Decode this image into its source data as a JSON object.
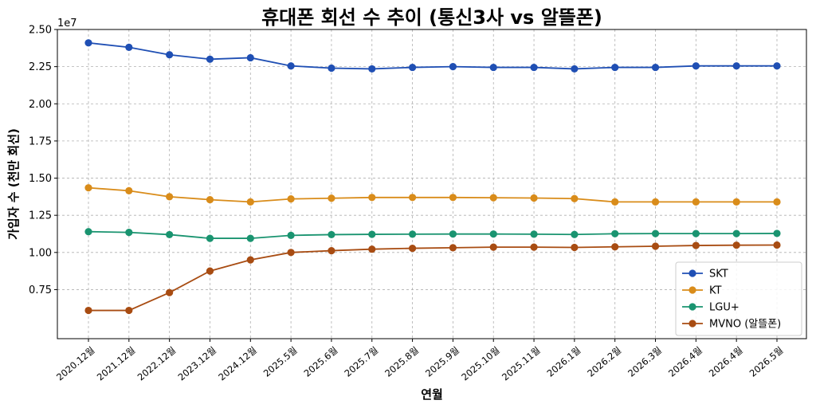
{
  "chart_data": {
    "type": "line",
    "title": "휴대폰 회선 수 추이 (통신3사 vs 알뜰폰)",
    "xlabel": "연월",
    "ylabel": "가입자 수 (천만 회선)",
    "y_offset_label": "1e7",
    "y_scale_exponent": 7,
    "ylim": [
      0.42,
      2.5
    ],
    "yticks": [
      0.75,
      1.0,
      1.25,
      1.5,
      1.75,
      2.0,
      2.25,
      2.5
    ],
    "ytick_labels": [
      "0.75",
      "1.00",
      "1.25",
      "1.50",
      "1.75",
      "2.00",
      "2.25",
      "2.50"
    ],
    "grid": true,
    "legend_position": "bottom-right",
    "categories": [
      "2020.12월",
      "2021.12월",
      "2022.12월",
      "2023.12월",
      "2024.12월",
      "2025.5월",
      "2025.6월",
      "2025.7월",
      "2025.8월",
      "2025.9월",
      "2025.10월",
      "2025.11월",
      "2026.1월",
      "2026.2월",
      "2026.3월",
      "2026.4월",
      "2026.4월",
      "2026.5월"
    ],
    "series": [
      {
        "name": "SKT",
        "color": "#1f4fb4",
        "values": [
          2.41,
          2.38,
          2.33,
          2.3,
          2.31,
          2.255,
          2.24,
          2.235,
          2.245,
          2.25,
          2.245,
          2.245,
          2.235,
          2.245,
          2.245,
          2.255,
          2.255,
          2.255
        ]
      },
      {
        "name": "KT",
        "color": "#d98c1a",
        "values": [
          1.435,
          1.415,
          1.375,
          1.355,
          1.34,
          1.36,
          1.365,
          1.37,
          1.37,
          1.37,
          1.368,
          1.366,
          1.362,
          1.34,
          1.34,
          1.34,
          1.34,
          1.34
        ]
      },
      {
        "name": "LGU+",
        "color": "#1a9470",
        "values": [
          1.14,
          1.135,
          1.12,
          1.095,
          1.095,
          1.115,
          1.12,
          1.122,
          1.123,
          1.124,
          1.124,
          1.123,
          1.121,
          1.126,
          1.127,
          1.127,
          1.127,
          1.128
        ]
      },
      {
        "name": "MVNO (알뜰폰)",
        "color": "#a84c12",
        "values": [
          0.61,
          0.61,
          0.73,
          0.875,
          0.95,
          1.0,
          1.012,
          1.022,
          1.028,
          1.032,
          1.036,
          1.036,
          1.034,
          1.038,
          1.042,
          1.047,
          1.049,
          1.05
        ]
      }
    ]
  }
}
